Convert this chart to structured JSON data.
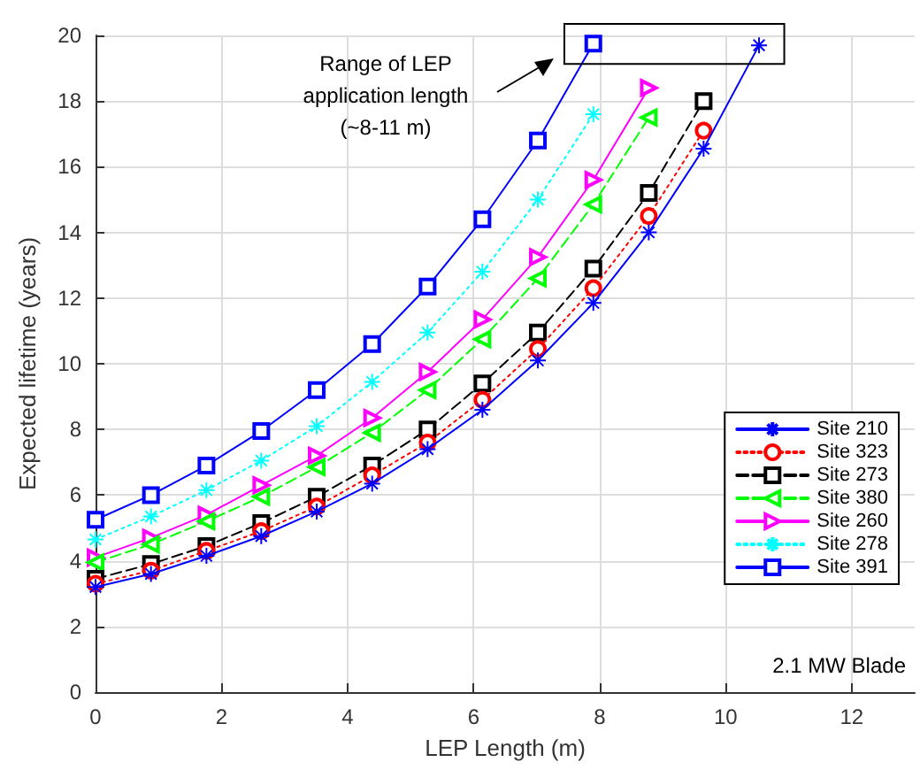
{
  "chart_data": {
    "type": "line",
    "xlabel": "LEP Length (m)",
    "ylabel": "Expected lifetime (years)",
    "x": [
      0,
      0.88,
      1.76,
      2.63,
      3.51,
      4.39,
      5.27,
      6.14,
      7.02,
      7.9,
      8.78,
      9.65,
      10.53
    ],
    "series": [
      {
        "name": "Site 210",
        "color": "#0000ff",
        "marker": "cross",
        "line_style": "solid",
        "values": [
          3.2,
          3.6,
          4.15,
          4.75,
          5.5,
          6.35,
          7.4,
          8.6,
          10.1,
          11.85,
          14.0,
          16.55,
          19.7
        ]
      },
      {
        "name": "Site 323",
        "color": "#ff0000",
        "marker": "circle",
        "line_style": "dotted",
        "values": [
          3.3,
          3.7,
          4.3,
          4.9,
          5.65,
          6.6,
          7.6,
          8.9,
          10.45,
          12.3,
          14.5,
          17.1,
          null
        ]
      },
      {
        "name": "Site 273",
        "color": "#000000",
        "marker": "square",
        "line_style": "dashed",
        "values": [
          3.45,
          3.9,
          4.45,
          5.15,
          5.95,
          6.9,
          8.0,
          9.4,
          10.95,
          12.9,
          15.2,
          18.0,
          null
        ]
      },
      {
        "name": "Site 380",
        "color": "#00ff00",
        "marker": "triangle",
        "line_style": "dashed",
        "values": [
          3.95,
          4.5,
          5.2,
          5.95,
          6.85,
          7.9,
          9.2,
          10.75,
          12.6,
          14.85,
          17.5,
          null,
          null
        ]
      },
      {
        "name": "Site 260",
        "color": "#ff00ff",
        "marker": "triangle",
        "line_style": "solid",
        "values": [
          4.1,
          4.7,
          5.4,
          6.3,
          7.2,
          8.35,
          9.75,
          11.35,
          13.25,
          15.6,
          18.4,
          null,
          null
        ]
      },
      {
        "name": "Site 278",
        "color": "#00ffff",
        "marker": "cross",
        "line_style": "dotted",
        "values": [
          4.65,
          5.35,
          6.15,
          7.05,
          8.1,
          9.45,
          10.95,
          12.8,
          15.0,
          17.6,
          null,
          null,
          null
        ]
      },
      {
        "name": "Site 391",
        "color": "#0000ff",
        "marker": "square",
        "line_style": "solid",
        "values": [
          5.25,
          6.0,
          6.9,
          7.95,
          9.2,
          10.6,
          12.35,
          14.4,
          16.8,
          19.75,
          null,
          null,
          null
        ]
      }
    ],
    "xlim": [
      0,
      13
    ],
    "xticks": [
      0,
      2,
      4,
      6,
      8,
      10,
      12
    ],
    "ylim": [
      0,
      20
    ],
    "yticks": [
      0,
      2,
      4,
      6,
      8,
      10,
      12,
      14,
      16,
      18,
      20
    ],
    "grid": true,
    "legend": "right",
    "annotations": [
      "Range of LEP\napplication length\n(~8-11 m)",
      "2.1 MW Blade"
    ]
  }
}
